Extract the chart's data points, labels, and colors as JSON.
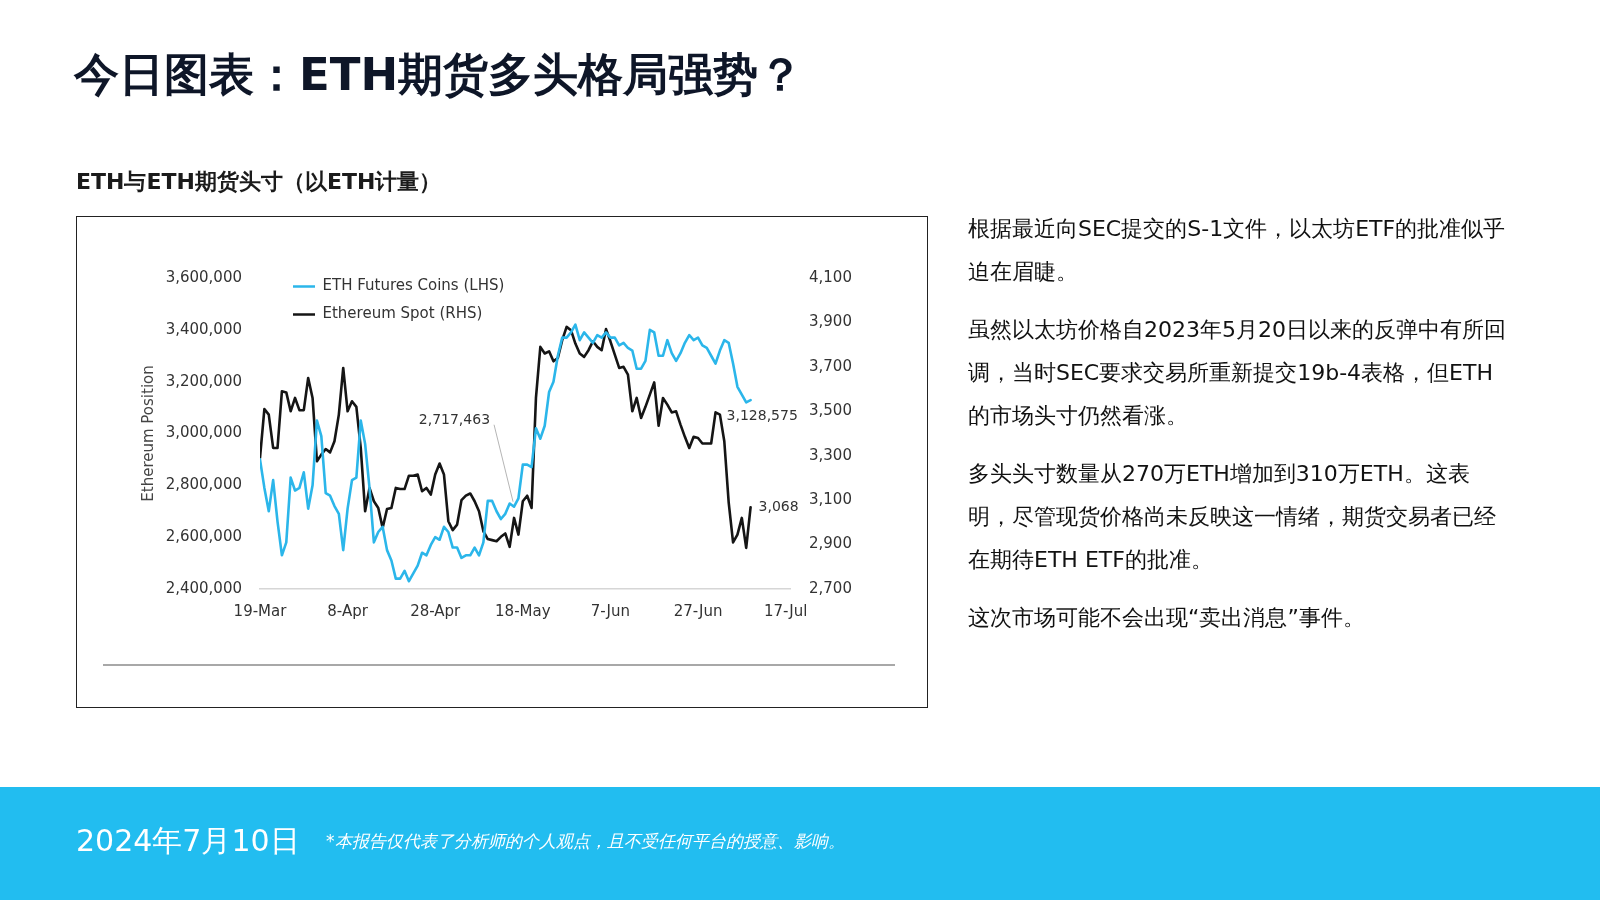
{
  "chart_data": {
    "type": "line",
    "title": "今日图表：ETH期货多头格局强势？",
    "subtitle": "ETH与ETH期货头寸（以ETH计量）",
    "ylabel": "Ethereum Position",
    "x": [
      "2024-03-19",
      "2024-03-20",
      "2024-03-21",
      "2024-03-22",
      "2024-03-23",
      "2024-03-24",
      "2024-03-25",
      "2024-03-26",
      "2024-03-27",
      "2024-03-28",
      "2024-03-29",
      "2024-03-30",
      "2024-03-31",
      "2024-04-01",
      "2024-04-02",
      "2024-04-03",
      "2024-04-04",
      "2024-04-05",
      "2024-04-06",
      "2024-04-07",
      "2024-04-08",
      "2024-04-09",
      "2024-04-10",
      "2024-04-11",
      "2024-04-12",
      "2024-04-13",
      "2024-04-14",
      "2024-04-15",
      "2024-04-16",
      "2024-04-17",
      "2024-04-18",
      "2024-04-19",
      "2024-04-20",
      "2024-04-21",
      "2024-04-22",
      "2024-04-23",
      "2024-04-24",
      "2024-04-25",
      "2024-04-26",
      "2024-04-27",
      "2024-04-28",
      "2024-04-29",
      "2024-04-30",
      "2024-05-01",
      "2024-05-02",
      "2024-05-03",
      "2024-05-04",
      "2024-05-05",
      "2024-05-06",
      "2024-05-07",
      "2024-05-08",
      "2024-05-09",
      "2024-05-10",
      "2024-05-11",
      "2024-05-12",
      "2024-05-13",
      "2024-05-14",
      "2024-05-15",
      "2024-05-16",
      "2024-05-17",
      "2024-05-18",
      "2024-05-19",
      "2024-05-20",
      "2024-05-21",
      "2024-05-22",
      "2024-05-23",
      "2024-05-24",
      "2024-05-25",
      "2024-05-26",
      "2024-05-27",
      "2024-05-28",
      "2024-05-29",
      "2024-05-30",
      "2024-05-31",
      "2024-06-01",
      "2024-06-02",
      "2024-06-03",
      "2024-06-04",
      "2024-06-05",
      "2024-06-06",
      "2024-06-07",
      "2024-06-08",
      "2024-06-09",
      "2024-06-10",
      "2024-06-11",
      "2024-06-12",
      "2024-06-13",
      "2024-06-14",
      "2024-06-15",
      "2024-06-16",
      "2024-06-17",
      "2024-06-18",
      "2024-06-19",
      "2024-06-20",
      "2024-06-21",
      "2024-06-22",
      "2024-06-23",
      "2024-06-24",
      "2024-06-25",
      "2024-06-26",
      "2024-06-27",
      "2024-06-28",
      "2024-06-29",
      "2024-06-30",
      "2024-07-01",
      "2024-07-02",
      "2024-07-03",
      "2024-07-04",
      "2024-07-05",
      "2024-07-06",
      "2024-07-07",
      "2024-07-08",
      "2024-07-09"
    ],
    "xlim": [
      "2024-03-19",
      "2024-07-18"
    ],
    "xticks": [
      {
        "value": "2024-03-19",
        "label": "19-Mar"
      },
      {
        "value": "2024-04-08",
        "label": "8-Apr"
      },
      {
        "value": "2024-04-28",
        "label": "28-Apr"
      },
      {
        "value": "2024-05-18",
        "label": "18-May"
      },
      {
        "value": "2024-06-07",
        "label": "7-Jun"
      },
      {
        "value": "2024-06-27",
        "label": "27-Jun"
      },
      {
        "value": "2024-07-17",
        "label": "17-Jul"
      }
    ],
    "ylim": [
      2400000,
      3600000
    ],
    "yticks": [
      {
        "value": 2400000,
        "label": "2,400,000"
      },
      {
        "value": 2600000,
        "label": "2,600,000"
      },
      {
        "value": 2800000,
        "label": "2,800,000"
      },
      {
        "value": 3000000,
        "label": "3,000,000"
      },
      {
        "value": 3200000,
        "label": "3,200,000"
      },
      {
        "value": 3400000,
        "label": "3,400,000"
      },
      {
        "value": 3600000,
        "label": "3,600,000"
      }
    ],
    "y2lim": [
      2700,
      4100
    ],
    "y2ticks": [
      {
        "value": 2700,
        "label": "2,700"
      },
      {
        "value": 2900,
        "label": "2,900"
      },
      {
        "value": 3100,
        "label": "3,100"
      },
      {
        "value": 3300,
        "label": "3,300"
      },
      {
        "value": 3500,
        "label": "3,500"
      },
      {
        "value": 3700,
        "label": "3,700"
      },
      {
        "value": 3900,
        "label": "3,900"
      },
      {
        "value": 4100,
        "label": "4,100"
      }
    ],
    "series": [
      {
        "name": "ETH Futures Coins (LHS)",
        "color": "#2bb6ea",
        "values": [
          2900000,
          2790000,
          2700000,
          2820000,
          2660000,
          2530000,
          2580000,
          2830000,
          2780000,
          2790000,
          2850000,
          2710000,
          2800000,
          3050000,
          2990000,
          2770000,
          2760000,
          2720000,
          2690000,
          2550000,
          2710000,
          2820000,
          2830000,
          3050000,
          2960000,
          2790000,
          2580000,
          2620000,
          2640000,
          2550000,
          2510000,
          2440000,
          2440000,
          2470000,
          2430000,
          2460000,
          2490000,
          2540000,
          2530000,
          2570000,
          2600000,
          2590000,
          2640000,
          2620000,
          2560000,
          2560000,
          2520000,
          2530000,
          2530000,
          2560000,
          2530000,
          2580000,
          2740000,
          2740000,
          2700000,
          2670000,
          2690000,
          2730000,
          2717463,
          2750000,
          2880000,
          2880000,
          2870000,
          3020000,
          2980000,
          3030000,
          3160000,
          3200000,
          3300000,
          3370000,
          3370000,
          3390000,
          3420000,
          3360000,
          3390000,
          3370000,
          3350000,
          3380000,
          3370000,
          3390000,
          3370000,
          3370000,
          3340000,
          3350000,
          3330000,
          3320000,
          3250000,
          3250000,
          3280000,
          3400000,
          3390000,
          3300000,
          3300000,
          3360000,
          3310000,
          3280000,
          3310000,
          3350000,
          3380000,
          3360000,
          3370000,
          3340000,
          3330000,
          3300000,
          3270000,
          3320000,
          3360000,
          3350000,
          3270000,
          3180000,
          3150000,
          3120000,
          3128575
        ],
        "value_labels": [
          null,
          null,
          null,
          null,
          null,
          null,
          null,
          null,
          null,
          null,
          null,
          null,
          null,
          null,
          null,
          null,
          null,
          null,
          null,
          null,
          null,
          null,
          null,
          null,
          null,
          null,
          null,
          null,
          null,
          null,
          null,
          null,
          null,
          null,
          null,
          null,
          null,
          null,
          null,
          null,
          null,
          null,
          null,
          null,
          null,
          null,
          null,
          null,
          null,
          null,
          null,
          null,
          null,
          null,
          null,
          null,
          null,
          null,
          "2,717,463",
          null,
          null,
          null,
          null,
          null,
          null,
          null,
          null,
          null,
          null,
          null,
          null,
          null,
          null,
          null,
          null,
          null,
          null,
          null,
          null,
          null,
          null,
          null,
          null,
          null,
          null,
          null,
          null,
          null,
          null,
          null,
          null,
          null,
          null,
          null,
          null,
          null,
          null,
          null,
          null,
          null,
          null,
          null,
          null,
          null,
          null,
          null,
          null,
          null,
          null,
          null,
          null,
          null,
          "3,128,575"
        ]
      },
      {
        "name": "Ethereum Spot (RHS)",
        "color": "#151515",
        "axis": "y2",
        "values": [
          3290,
          3510,
          3485,
          3335,
          3335,
          3590,
          3585,
          3500,
          3560,
          3505,
          3505,
          3650,
          3560,
          3275,
          3305,
          3330,
          3315,
          3365,
          3485,
          3695,
          3500,
          3545,
          3520,
          3335,
          3050,
          3155,
          3095,
          3065,
          2975,
          3060,
          3065,
          3155,
          3150,
          3150,
          3210,
          3210,
          3215,
          3140,
          3155,
          3125,
          3215,
          3265,
          3215,
          3005,
          2965,
          2990,
          3100,
          3120,
          3130,
          3095,
          3050,
          2960,
          2925,
          2920,
          2915,
          2935,
          2950,
          2890,
          3020,
          2945,
          3095,
          3120,
          3065,
          3560,
          3790,
          3760,
          3770,
          3725,
          3740,
          3820,
          3880,
          3865,
          3805,
          3760,
          3745,
          3775,
          3815,
          3790,
          3775,
          3870,
          3815,
          3755,
          3695,
          3700,
          3665,
          3500,
          3560,
          3470,
          3520,
          3575,
          3630,
          3435,
          3560,
          3530,
          3495,
          3500,
          3440,
          3385,
          3335,
          3385,
          3380,
          3355,
          3355,
          3355,
          3495,
          3485,
          3365,
          3090,
          2910,
          2945,
          3020,
          2885,
          3068
        ],
        "value_labels": [
          null,
          null,
          null,
          null,
          null,
          null,
          null,
          null,
          null,
          null,
          null,
          null,
          null,
          null,
          null,
          null,
          null,
          null,
          null,
          null,
          null,
          null,
          null,
          null,
          null,
          null,
          null,
          null,
          null,
          null,
          null,
          null,
          null,
          null,
          null,
          null,
          null,
          null,
          null,
          null,
          null,
          null,
          null,
          null,
          null,
          null,
          null,
          null,
          null,
          null,
          null,
          null,
          null,
          null,
          null,
          null,
          null,
          null,
          null,
          null,
          null,
          null,
          null,
          null,
          null,
          null,
          null,
          null,
          null,
          null,
          null,
          null,
          null,
          null,
          null,
          null,
          null,
          null,
          null,
          null,
          null,
          null,
          null,
          null,
          null,
          null,
          null,
          null,
          null,
          null,
          null,
          null,
          null,
          null,
          null,
          null,
          null,
          null,
          null,
          null,
          null,
          null,
          null,
          null,
          null,
          null,
          null,
          null,
          null,
          null,
          null,
          null,
          "3,068"
        ]
      }
    ],
    "legend": "top left",
    "grid": false,
    "marker": "none",
    "annotations": [
      "根据最近向SEC提交的S-1文件，以太坊ETF的批准似乎迫在眉睫。",
      "虽然以太坊价格自2023年5月20日以来的反弹中有所回调，当时SEC要求交易所重新提交19b-4表格，但ETH的市场头寸仍然看涨。",
      "多头头寸数量从270万ETH增加到310万ETH。这表明，尽管现货价格尚未反映这一情绪，期货交易者已经在期待ETH ETF的批准。",
      "这次市场可能不会出现“卖出消息”事件。",
      "2024年7月10日",
      "*本报告仅代表了分析师的个人观点，且不受任何平台的授意、影响。"
    ]
  }
}
